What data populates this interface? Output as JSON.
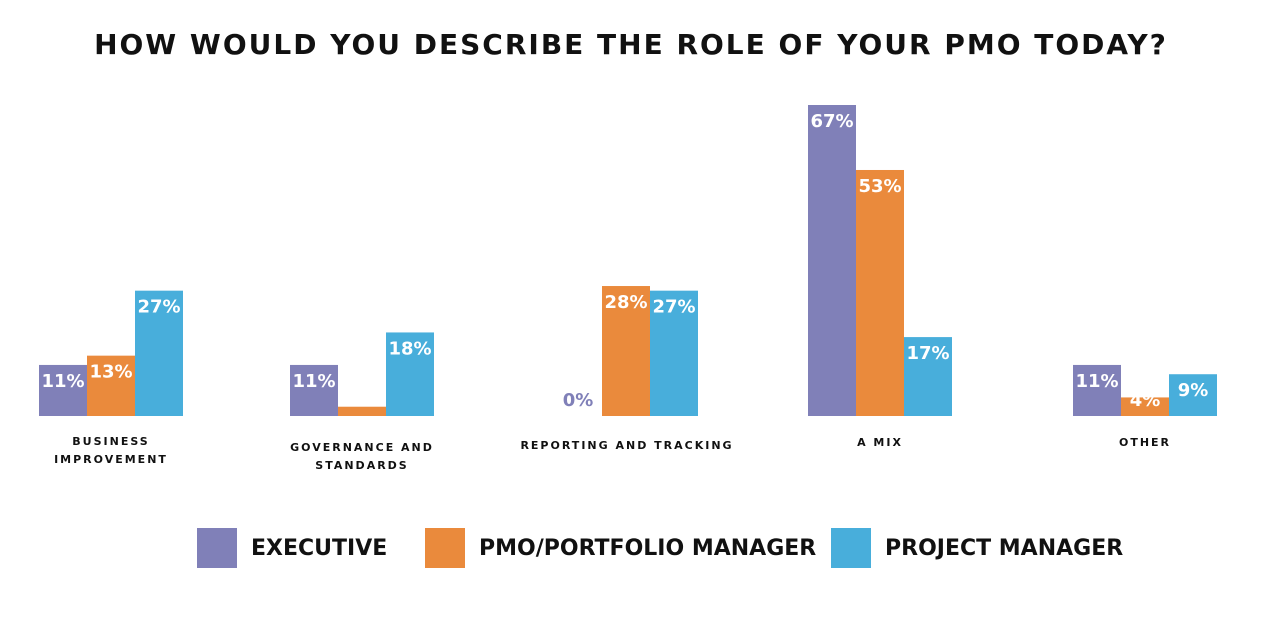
{
  "chart_data": {
    "type": "bar",
    "title": "HOW WOULD YOU DESCRIBE THE ROLE OF YOUR PMO TODAY?",
    "categories": [
      [
        "BUSINESS",
        "IMPROVEMENT"
      ],
      [
        "GOVERNANCE AND",
        "STANDARDS"
      ],
      [
        "REPORTING AND TRACKING"
      ],
      [
        "A MIX"
      ],
      [
        "OTHER"
      ]
    ],
    "series": [
      {
        "name": "EXECUTIVE",
        "color": "#8080b8",
        "values": [
          11,
          11,
          0,
          67,
          11
        ]
      },
      {
        "name": "PMO/PORTFOLIO MANAGER",
        "color": "#ea8a3c",
        "values": [
          13,
          2,
          28,
          53,
          4
        ]
      },
      {
        "name": "PROJECT MANAGER",
        "color": "#48aedb",
        "values": [
          27,
          18,
          27,
          17,
          9
        ]
      }
    ],
    "value_format": "%",
    "ylim": [
      0,
      67
    ],
    "grid": false,
    "legend_position": "bottom"
  }
}
